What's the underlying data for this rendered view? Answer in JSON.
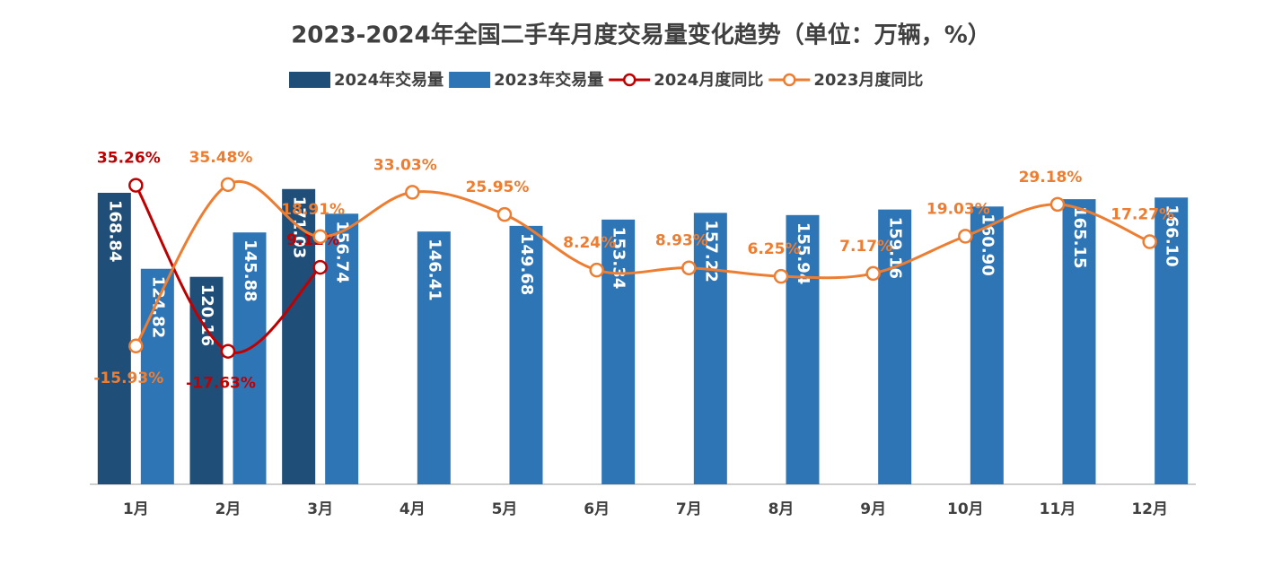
{
  "chart_data": {
    "type": "bar-line",
    "title": "2023-2024年全国二手车月度交易量变化趋势（单位：万辆，%）",
    "categories": [
      "1月",
      "2月",
      "3月",
      "4月",
      "5月",
      "6月",
      "7月",
      "8月",
      "9月",
      "10月",
      "11月",
      "12月"
    ],
    "series": [
      {
        "name": "2024年交易量",
        "type": "bar",
        "color": "#1f4e79",
        "values": [
          168.84,
          120.16,
          171.03,
          null,
          null,
          null,
          null,
          null,
          null,
          null,
          null,
          null
        ]
      },
      {
        "name": "2023年交易量",
        "type": "bar",
        "color": "#2e75b6",
        "values": [
          124.82,
          145.88,
          156.74,
          146.41,
          149.68,
          153.34,
          157.22,
          155.94,
          159.16,
          160.9,
          165.15,
          166.1
        ],
        "value_labels": [
          "124.82",
          "145.88",
          "156.74",
          "146.41",
          "149.68",
          "153.34",
          "157.22",
          "155.94",
          "159.16",
          "160.90",
          "165.15",
          "166.10"
        ]
      },
      {
        "name": "2024月度同比",
        "type": "line",
        "axis": "y2",
        "color": "#c00000",
        "values": [
          35.26,
          -17.63,
          9.12,
          null,
          null,
          null,
          null,
          null,
          null,
          null,
          null,
          null
        ],
        "value_labels": [
          "35.26%",
          "-17.63%",
          "9.12%",
          null,
          null,
          null,
          null,
          null,
          null,
          null,
          null,
          null
        ]
      },
      {
        "name": "2023月度同比",
        "type": "line",
        "axis": "y2",
        "color": "#ed7d31",
        "values": [
          -15.93,
          35.48,
          18.91,
          33.03,
          25.95,
          8.24,
          8.93,
          6.25,
          7.17,
          19.03,
          29.18,
          17.27
        ],
        "value_labels": [
          "-15.93%",
          "35.48%",
          "18.91%",
          "33.03%",
          "25.95%",
          "8.24%",
          "8.93%",
          "6.25%",
          "7.17%",
          "19.03%",
          "29.18%",
          "17.27%"
        ]
      }
    ],
    "ylim": [
      0,
      200
    ],
    "y2lim": [
      -60,
      50
    ]
  }
}
